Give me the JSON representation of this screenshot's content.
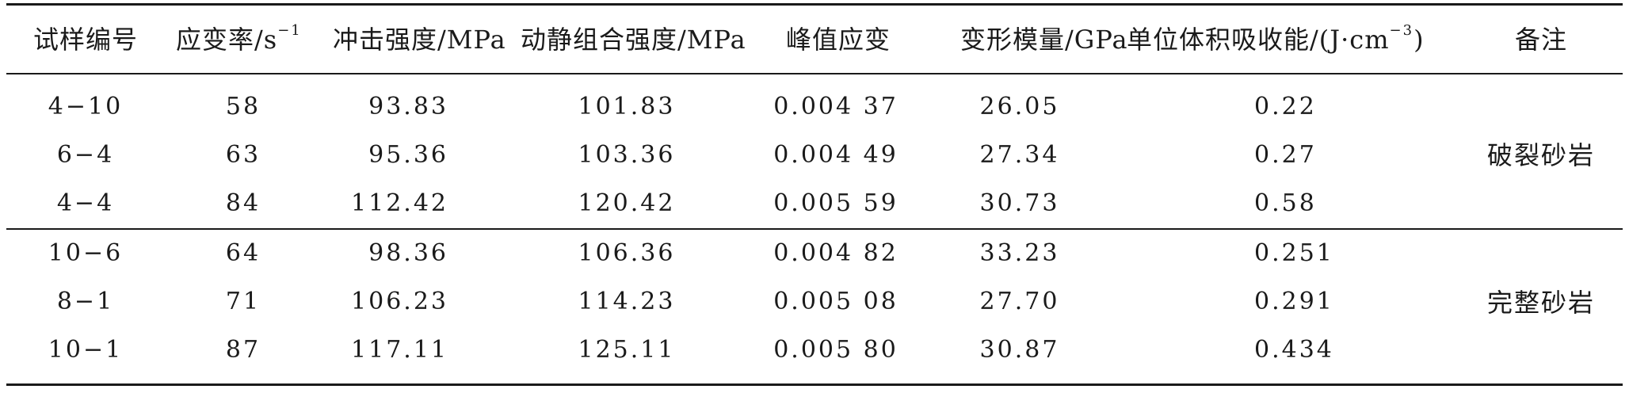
{
  "table": {
    "headers": {
      "specimen": "试样编号",
      "strain_rate": "应变率/s",
      "strain_rate_sup": "−1",
      "impact_strength": "冲击强度/MPa",
      "combined_strength": "动静组合强度/MPa",
      "peak_strain": "峰值应变",
      "modulus": "变形模量/GPa",
      "energy": "单位体积吸收能/(J·cm",
      "energy_sup": "−3",
      "energy_close": ")",
      "remark": "备注"
    },
    "groups": [
      {
        "remark": "破裂砂岩",
        "rows": [
          {
            "specimen": "4−10",
            "strain_rate": "58",
            "impact_strength": "93.83",
            "combined_strength": "101.83",
            "peak_strain": "0.004 37",
            "modulus": "26.05",
            "energy": "0.22"
          },
          {
            "specimen": "6−4",
            "strain_rate": "63",
            "impact_strength": "95.36",
            "combined_strength": "103.36",
            "peak_strain": "0.004 49",
            "modulus": "27.34",
            "energy": "0.27"
          },
          {
            "specimen": "4−4",
            "strain_rate": "84",
            "impact_strength": "112.42",
            "combined_strength": "120.42",
            "peak_strain": "0.005 59",
            "modulus": "30.73",
            "energy": "0.58"
          }
        ]
      },
      {
        "remark": "完整砂岩",
        "rows": [
          {
            "specimen": "10−6",
            "strain_rate": "64",
            "impact_strength": "98.36",
            "combined_strength": "106.36",
            "peak_strain": "0.004 82",
            "modulus": "33.23",
            "energy": "0.251"
          },
          {
            "specimen": "8−1",
            "strain_rate": "71",
            "impact_strength": "106.23",
            "combined_strength": "114.23",
            "peak_strain": "0.005 08",
            "modulus": "27.70",
            "energy": "0.291"
          },
          {
            "specimen": "10−1",
            "strain_rate": "87",
            "impact_strength": "117.11",
            "combined_strength": "125.11",
            "peak_strain": "0.005 80",
            "modulus": "30.87",
            "energy": "0.434"
          }
        ]
      }
    ]
  }
}
